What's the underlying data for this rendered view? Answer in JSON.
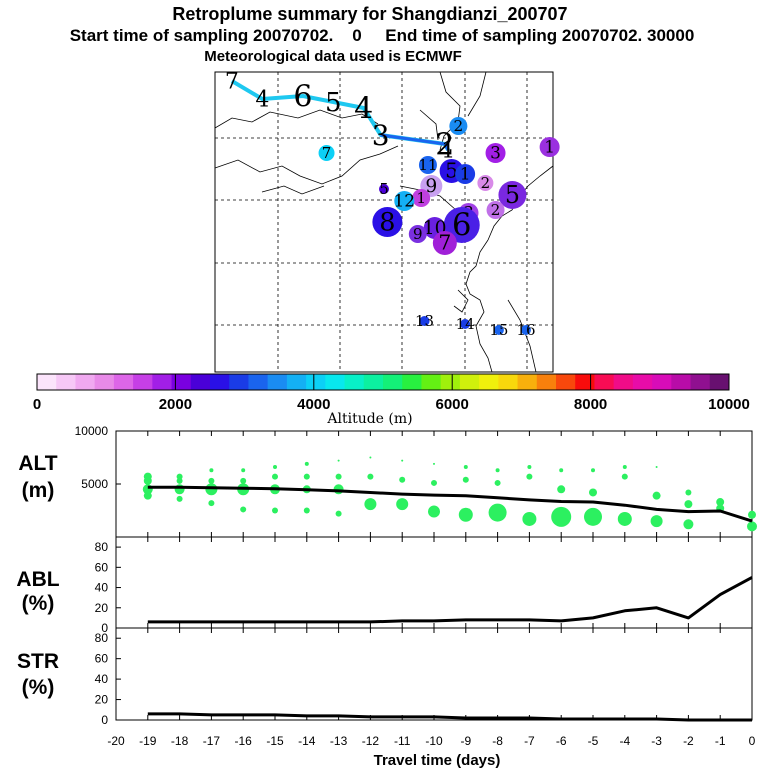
{
  "title": {
    "line1": "Retroplume summary for Shangdianzi_200707",
    "line2": "Start time of sampling 20070702.    0     End time of sampling 20070702. 30000",
    "line3": "Meteorological data used is ECMWF"
  },
  "colorbar": {
    "label": "Altitude (m)",
    "ticks": [
      "0",
      "2000",
      "4000",
      "6000",
      "8000",
      "10000"
    ],
    "range": [
      0,
      10000
    ],
    "colors": [
      "#fbe4fb",
      "#f6c8f6",
      "#f0a9f0",
      "#e88ae8",
      "#dd66e8",
      "#c63fe6",
      "#a21fe6",
      "#7a00e0",
      "#4a00d8",
      "#2a10e6",
      "#1a3ce6",
      "#1a64ee",
      "#1a8cf2",
      "#14b0f4",
      "#0cd0f6",
      "#08e8ee",
      "#08f0c8",
      "#0cf0a0",
      "#14f078",
      "#28f040",
      "#64f014",
      "#a0f00c",
      "#d0f00c",
      "#f0f00c",
      "#f8d80c",
      "#f8b00c",
      "#f8800c",
      "#f8480c",
      "#f80c0c",
      "#f80c54",
      "#f00c88",
      "#e80ca8",
      "#d80cb8",
      "#b80ca8",
      "#901090",
      "#681070"
    ]
  },
  "map": {
    "trajectory": [
      {
        "day": "7",
        "lon": 0.05,
        "lat": 0.03,
        "size": 22
      },
      {
        "day": "4",
        "lon": 0.14,
        "lat": 0.09,
        "size": 22
      },
      {
        "day": "6",
        "lon": 0.26,
        "lat": 0.08,
        "size": 30
      },
      {
        "day": "5",
        "lon": 0.35,
        "lat": 0.1,
        "size": 26
      },
      {
        "day": "4",
        "lon": 0.44,
        "lat": 0.12,
        "size": 30
      },
      {
        "day": "3",
        "lon": 0.49,
        "lat": 0.21,
        "size": 28
      },
      {
        "day": "2",
        "lon": 0.68,
        "lat": 0.24,
        "size": 30
      },
      {
        "day": "1",
        "lon": 0.69,
        "lat": 0.26,
        "size": 22
      }
    ],
    "clusters": [
      {
        "label": "1",
        "lon": 0.99,
        "lat": 0.25,
        "color": "#9a30e0",
        "r": 10
      },
      {
        "label": "2",
        "lon": 0.72,
        "lat": 0.18,
        "color": "#1a8cf2",
        "r": 9
      },
      {
        "label": "3",
        "lon": 0.83,
        "lat": 0.27,
        "color": "#a21fe6",
        "r": 10
      },
      {
        "label": "7",
        "lon": 0.33,
        "lat": 0.27,
        "color": "#0cd0f6",
        "r": 8
      },
      {
        "label": "11",
        "lon": 0.63,
        "lat": 0.31,
        "color": "#1a64ee",
        "r": 9
      },
      {
        "label": "5",
        "lon": 0.7,
        "lat": 0.33,
        "color": "#2a10e6",
        "r": 12
      },
      {
        "label": "1",
        "lon": 0.74,
        "lat": 0.34,
        "color": "#1a3ce6",
        "r": 10
      },
      {
        "label": "2",
        "lon": 0.8,
        "lat": 0.37,
        "color": "#d88ae8",
        "r": 8
      },
      {
        "label": "9",
        "lon": 0.64,
        "lat": 0.38,
        "color": "#c8a0f0",
        "r": 11
      },
      {
        "label": "5",
        "lon": 0.88,
        "lat": 0.41,
        "color": "#7a28e0",
        "r": 14
      },
      {
        "label": "5",
        "lon": 0.5,
        "lat": 0.39,
        "color": "#4a00d8",
        "r": 5
      },
      {
        "label": "1",
        "lon": 0.61,
        "lat": 0.42,
        "color": "#c040e0",
        "r": 9
      },
      {
        "label": "12",
        "lon": 0.56,
        "lat": 0.43,
        "color": "#14b0f4",
        "r": 10
      },
      {
        "label": "2",
        "lon": 0.83,
        "lat": 0.46,
        "color": "#c070e8",
        "r": 9
      },
      {
        "label": "3",
        "lon": 0.75,
        "lat": 0.47,
        "color": "#a040e6",
        "r": 10
      },
      {
        "label": "8",
        "lon": 0.51,
        "lat": 0.5,
        "color": "#2a10e6",
        "r": 15
      },
      {
        "label": "6",
        "lon": 0.73,
        "lat": 0.51,
        "color": "#4a20e6",
        "r": 18
      },
      {
        "label": "10",
        "lon": 0.65,
        "lat": 0.52,
        "color": "#6a20e0",
        "r": 11
      },
      {
        "label": "9",
        "lon": 0.6,
        "lat": 0.54,
        "color": "#7a30e0",
        "r": 9
      },
      {
        "label": "7",
        "lon": 0.68,
        "lat": 0.57,
        "color": "#a020d8",
        "r": 12
      },
      {
        "label": "13",
        "lon": 0.62,
        "lat": 0.83,
        "color": "#1a3ce6",
        "r": 5
      },
      {
        "label": "14",
        "lon": 0.74,
        "lat": 0.84,
        "color": "#1a3ce6",
        "r": 5
      },
      {
        "label": "15",
        "lon": 0.84,
        "lat": 0.86,
        "color": "#1a64ee",
        "r": 5
      },
      {
        "label": "16",
        "lon": 0.92,
        "lat": 0.86,
        "color": "#1a64ee",
        "r": 5
      }
    ]
  },
  "chart_data": [
    {
      "type": "line",
      "panel": "ALT",
      "label_line1": "ALT",
      "label_line2": "(m)",
      "x": [
        -19,
        -18,
        -17,
        -16,
        -15,
        -14,
        -13,
        -12,
        -11,
        -10,
        -9,
        -8,
        -7,
        -6,
        -5,
        -4,
        -3,
        -2,
        -1,
        0
      ],
      "values": [
        4700,
        4700,
        4650,
        4600,
        4550,
        4450,
        4350,
        4200,
        4050,
        3950,
        3900,
        3700,
        3500,
        3350,
        3300,
        3000,
        2600,
        2400,
        2450,
        1500
      ],
      "ylim": [
        0,
        10000
      ],
      "yticks": [
        "5000",
        "10000"
      ],
      "ytick_values": [
        5000,
        10000
      ],
      "plume_dots": [
        {
          "x": -19,
          "y": 5700,
          "s": 4
        },
        {
          "x": -19,
          "y": 5300,
          "s": 4
        },
        {
          "x": -19,
          "y": 4500,
          "s": 5
        },
        {
          "x": -19,
          "y": 3900,
          "s": 4
        },
        {
          "x": -18,
          "y": 5700,
          "s": 3
        },
        {
          "x": -18,
          "y": 5300,
          "s": 3
        },
        {
          "x": -18,
          "y": 4500,
          "s": 5
        },
        {
          "x": -18,
          "y": 3600,
          "s": 3
        },
        {
          "x": -17,
          "y": 6300,
          "s": 2
        },
        {
          "x": -17,
          "y": 5300,
          "s": 3
        },
        {
          "x": -17,
          "y": 4500,
          "s": 6
        },
        {
          "x": -17,
          "y": 3200,
          "s": 3
        },
        {
          "x": -16,
          "y": 6300,
          "s": 2
        },
        {
          "x": -16,
          "y": 5300,
          "s": 3
        },
        {
          "x": -16,
          "y": 4500,
          "s": 6
        },
        {
          "x": -16,
          "y": 2600,
          "s": 3
        },
        {
          "x": -15,
          "y": 6600,
          "s": 2
        },
        {
          "x": -15,
          "y": 5700,
          "s": 3
        },
        {
          "x": -15,
          "y": 4500,
          "s": 5
        },
        {
          "x": -15,
          "y": 2500,
          "s": 3
        },
        {
          "x": -14,
          "y": 6900,
          "s": 2
        },
        {
          "x": -14,
          "y": 5700,
          "s": 3
        },
        {
          "x": -14,
          "y": 4500,
          "s": 4
        },
        {
          "x": -14,
          "y": 2500,
          "s": 3
        },
        {
          "x": -13,
          "y": 7200,
          "s": 1
        },
        {
          "x": -13,
          "y": 5700,
          "s": 3
        },
        {
          "x": -13,
          "y": 4500,
          "s": 5
        },
        {
          "x": -13,
          "y": 2200,
          "s": 3
        },
        {
          "x": -12,
          "y": 7500,
          "s": 1
        },
        {
          "x": -12,
          "y": 5700,
          "s": 3
        },
        {
          "x": -12,
          "y": 3100,
          "s": 6
        },
        {
          "x": -11,
          "y": 7200,
          "s": 1
        },
        {
          "x": -11,
          "y": 5400,
          "s": 3
        },
        {
          "x": -11,
          "y": 3100,
          "s": 6
        },
        {
          "x": -10,
          "y": 6900,
          "s": 1
        },
        {
          "x": -10,
          "y": 5100,
          "s": 3
        },
        {
          "x": -10,
          "y": 2400,
          "s": 6
        },
        {
          "x": -9,
          "y": 6600,
          "s": 2
        },
        {
          "x": -9,
          "y": 5400,
          "s": 3
        },
        {
          "x": -9,
          "y": 2100,
          "s": 7
        },
        {
          "x": -8,
          "y": 6300,
          "s": 2
        },
        {
          "x": -8,
          "y": 5100,
          "s": 3
        },
        {
          "x": -8,
          "y": 2300,
          "s": 9
        },
        {
          "x": -7,
          "y": 6600,
          "s": 2
        },
        {
          "x": -7,
          "y": 5700,
          "s": 3
        },
        {
          "x": -7,
          "y": 1700,
          "s": 7
        },
        {
          "x": -6,
          "y": 6300,
          "s": 2
        },
        {
          "x": -6,
          "y": 4500,
          "s": 4
        },
        {
          "x": -6,
          "y": 1900,
          "s": 10
        },
        {
          "x": -5,
          "y": 6300,
          "s": 2
        },
        {
          "x": -5,
          "y": 4200,
          "s": 4
        },
        {
          "x": -5,
          "y": 1900,
          "s": 9
        },
        {
          "x": -4,
          "y": 6600,
          "s": 2
        },
        {
          "x": -4,
          "y": 5700,
          "s": 3
        },
        {
          "x": -4,
          "y": 1700,
          "s": 7
        },
        {
          "x": -3,
          "y": 6600,
          "s": 1
        },
        {
          "x": -3,
          "y": 3900,
          "s": 4
        },
        {
          "x": -3,
          "y": 1500,
          "s": 6
        },
        {
          "x": -2,
          "y": 4200,
          "s": 3
        },
        {
          "x": -2,
          "y": 3100,
          "s": 4
        },
        {
          "x": -2,
          "y": 1200,
          "s": 5
        },
        {
          "x": -1,
          "y": 3300,
          "s": 4
        },
        {
          "x": -1,
          "y": 2700,
          "s": 4
        },
        {
          "x": 0,
          "y": 2100,
          "s": 4
        },
        {
          "x": 0,
          "y": 1000,
          "s": 5
        }
      ]
    },
    {
      "type": "line",
      "panel": "ABL",
      "label_line1": "ABL",
      "label_line2": "(%)",
      "x": [
        -19,
        -18,
        -17,
        -16,
        -15,
        -14,
        -13,
        -12,
        -11,
        -10,
        -9,
        -8,
        -7,
        -6,
        -5,
        -4,
        -3,
        -2,
        -1,
        0
      ],
      "values": [
        6,
        6,
        6,
        6,
        6,
        6,
        6,
        6,
        7,
        7,
        8,
        8,
        8,
        7,
        10,
        17,
        20,
        10,
        33,
        50
      ],
      "ylim": [
        0,
        90
      ],
      "yticks": [
        "0",
        "20",
        "40",
        "60",
        "80"
      ],
      "ytick_values": [
        0,
        20,
        40,
        60,
        80
      ]
    },
    {
      "type": "line",
      "panel": "STR",
      "label_line1": "STR",
      "label_line2": "(%)",
      "x": [
        -19,
        -18,
        -17,
        -16,
        -15,
        -14,
        -13,
        -12,
        -11,
        -10,
        -9,
        -8,
        -7,
        -6,
        -5,
        -4,
        -3,
        -2,
        -1,
        0
      ],
      "values": [
        6,
        6,
        5,
        5,
        5,
        4,
        4,
        3,
        3,
        3,
        2,
        2,
        2,
        1,
        1,
        1,
        1,
        0,
        0,
        0
      ],
      "ylim": [
        0,
        90
      ],
      "yticks": [
        "0",
        "20",
        "40",
        "60",
        "80"
      ],
      "ytick_values": [
        0,
        20,
        40,
        60,
        80
      ]
    }
  ],
  "xaxis": {
    "label": "Travel time (days)",
    "ticks": [
      "-20",
      "-19",
      "-18",
      "-17",
      "-16",
      "-15",
      "-14",
      "-13",
      "-12",
      "-11",
      "-10",
      "-9",
      "-8",
      "-7",
      "-6",
      "-5",
      "-4",
      "-3",
      "-2",
      "-1",
      "0"
    ],
    "tick_values": [
      -20,
      -19,
      -18,
      -17,
      -16,
      -15,
      -14,
      -13,
      -12,
      -11,
      -10,
      -9,
      -8,
      -7,
      -6,
      -5,
      -4,
      -3,
      -2,
      -1,
      0
    ],
    "xlim": [
      -20,
      0
    ]
  },
  "colors": {
    "trajectory_line": "#1ec8f0",
    "trajectory_line_end": "#1a64ee",
    "plume_dot": "#2cf060",
    "series_line": "#000000"
  }
}
